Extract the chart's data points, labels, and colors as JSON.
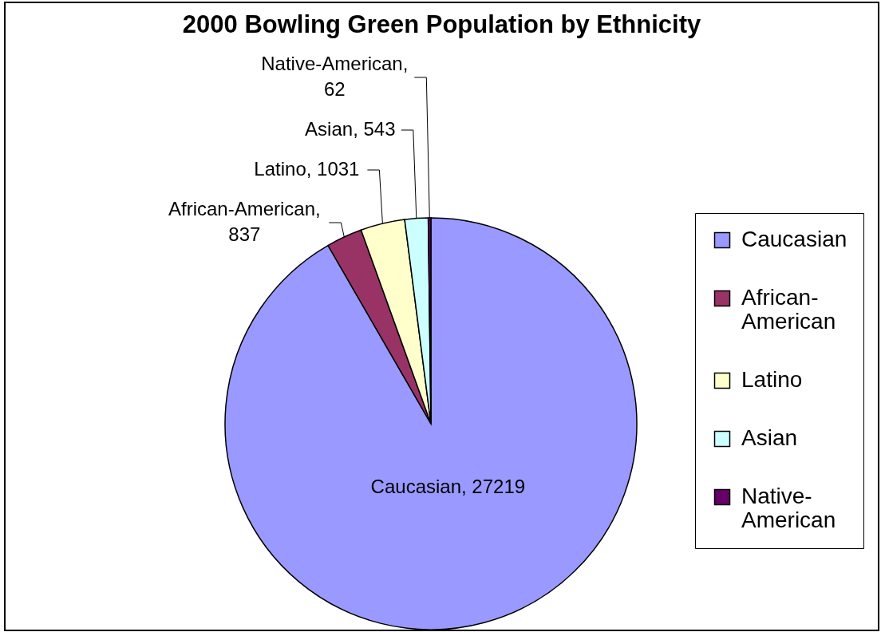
{
  "chart_data": {
    "type": "pie",
    "title": "2000 Bowling Green Population by Ethnicity",
    "categories": [
      "Caucasian",
      "African-American",
      "Latino",
      "Asian",
      "Native-American"
    ],
    "values": [
      27219,
      837,
      1031,
      543,
      62
    ],
    "colors": [
      "#9999ff",
      "#993366",
      "#ffffcc",
      "#ccffff",
      "#660066"
    ],
    "value_labels": [
      "Caucasian, 27219",
      "African-American, 837",
      "Latino, 1031",
      "Asian, 543",
      "Native-American, 62"
    ],
    "legend": "right"
  }
}
